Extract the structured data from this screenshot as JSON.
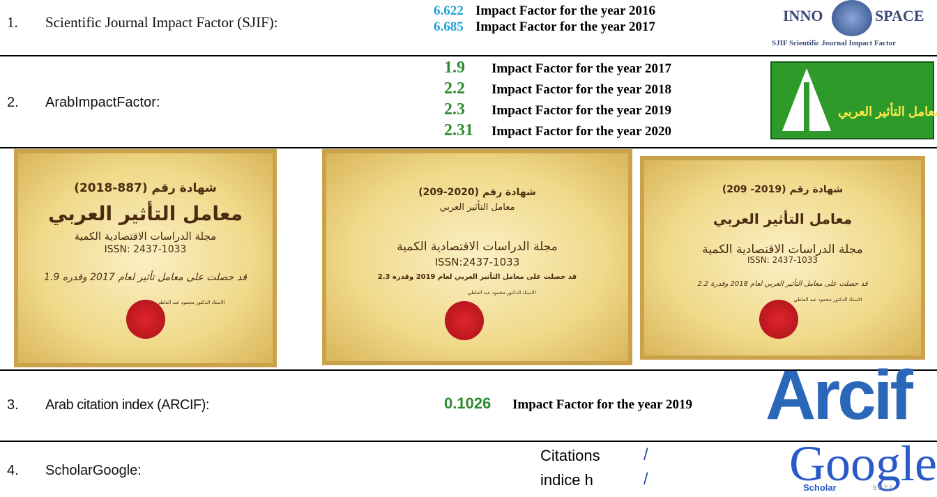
{
  "rows": [
    {
      "number": "1.",
      "label": "Scientific Journal Impact Factor (SJIF):",
      "factors": [
        {
          "value": "6.622",
          "text": "Impact Factor for the year 2016"
        },
        {
          "value": "6.685",
          "text": "Impact Factor for the year 2017"
        }
      ],
      "logo": {
        "left": "INNO",
        "right": "SPACE",
        "caption": "SJIF Scientific Journal Impact Factor"
      }
    },
    {
      "number": "2.",
      "label": "ArabImpactFactor:",
      "factors": [
        {
          "value": "1.9",
          "text": "Impact Factor for the year 2017"
        },
        {
          "value": "2.2",
          "text": "Impact Factor for the year 2018"
        },
        {
          "value": "2.3",
          "text": "Impact Factor for the year 2019"
        },
        {
          "value": "2.31",
          "text": "Impact Factor for the year 2020"
        }
      ],
      "logo": {
        "text": "معامل التأثير العربي"
      }
    },
    {
      "number": "3.",
      "label": "Arab citation index (ARCIF):",
      "factors": [
        {
          "value": "0.1026",
          "text": "Impact Factor for the year 2019"
        }
      ],
      "logo": {
        "text": "Arcif"
      }
    },
    {
      "number": "4.",
      "label": "ScholarGoogle:",
      "metrics": [
        {
          "name": "Citations",
          "value": "/"
        },
        {
          "name": "indice h",
          "value": "/"
        }
      ],
      "logo": {
        "text": "Google",
        "sub": "Scholar",
        "tag": "BETA"
      }
    }
  ],
  "certificates": [
    {
      "number": "شهادة رقم (887-2018)",
      "title": "معامل التأثير العربي",
      "journal": "مجلة الدراسات الاقتصادية الكمية",
      "issn": "ISSN: 2437-1033",
      "statement": "قد حصلت على معامل تأثير لعام 2017 وقدره 1.9",
      "signer": "الاستاذ الدكتور محمود عبد العاطي"
    },
    {
      "number": "شهادة رقم (2020-209)",
      "title": "معامل التأثير العربي",
      "journal": "مجلة الدراسات الاقتصادية الكمية",
      "issn": "ISSN:2437-1033",
      "statement": "قد حصلت على معامل التأثير العربي لعام 2019 وقدره 2.3",
      "signer": "الاستاذ الدكتور محمود عبد العاطي"
    },
    {
      "number": "شهادة رقم (2019- 209)",
      "title": "معامل التأثير العربي",
      "journal": "مجلة الدراسات الاقتصادية الكمية",
      "issn": "ISSN: 2437-1033",
      "statement": "قد حصلت على معامل التأثير العربي لعام 2018 وقدرة 2.2",
      "signer": "الاستاذ الدكتور محمود عبد العاطي"
    }
  ]
}
